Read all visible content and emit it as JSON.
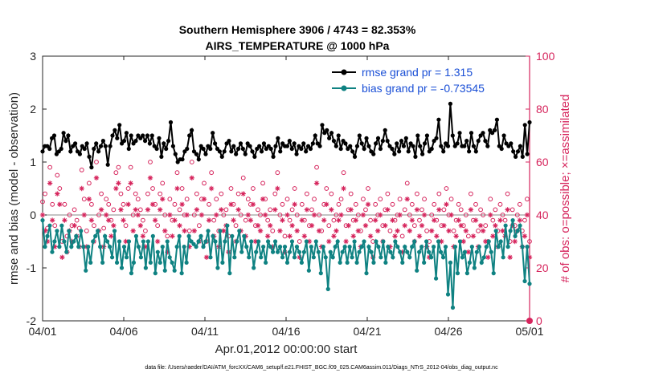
{
  "chart_data": {
    "type": "line",
    "title": "Southern Hemisphere 3906 / 4743 = 82.353%",
    "subtitle": "AIRS_TEMPERATURE @ 1000 hPa",
    "xlabel": "Apr.01,2012 00:00:00 start",
    "ylabel": "rmse and bias (model - observation)",
    "y2label": "# of obs: o=possible; ×=assimilated",
    "xlim": [
      0,
      30
    ],
    "ylim": [
      -2,
      3
    ],
    "y2lim": [
      0,
      100
    ],
    "x_ticks": [
      "04/01",
      "04/06",
      "04/11",
      "04/16",
      "04/21",
      "04/26",
      "05/01"
    ],
    "y_ticks": [
      "-2",
      "-1",
      "0",
      "1",
      "2",
      "3"
    ],
    "y2_ticks": [
      "0",
      "20",
      "40",
      "60",
      "80",
      "100"
    ],
    "footnote": "data file: /Users/raeder/DAI/ATM_forcXX/CAM6_setup/f.e21.FHIST_BGC.f09_025.CAM6assim.011/Diags_NTrS_2012-04/obs_diag_output.nc",
    "legend_position": "top-right",
    "series": [
      {
        "name": "rmse grand pr = 1.315",
        "color": "#000000",
        "marker": "filled-circle",
        "values": [
          1.2,
          1.3,
          1.3,
          1.25,
          1.45,
          1.5,
          1.15,
          1.2,
          1.25,
          1.55,
          1.4,
          1.5,
          1.2,
          1.3,
          1.35,
          1.2,
          1.15,
          1.3,
          1.25,
          1.35,
          1.1,
          0.9,
          1.25,
          1.35,
          1.2,
          1.3,
          1.4,
          1.3,
          0.95,
          1.3,
          1.5,
          1.6,
          1.45,
          1.7,
          1.35,
          1.4,
          1.55,
          1.25,
          1.5,
          1.35,
          1.4,
          1.5,
          1.45,
          1.5,
          1.4,
          1.5,
          1.35,
          1.5,
          1.3,
          1.25,
          1.45,
          1.1,
          1.35,
          1.25,
          1.4,
          1.75,
          1.3,
          1.15,
          1.0,
          1.05,
          1.05,
          1.2,
          1.25,
          1.5,
          1.6,
          1.2,
          1.15,
          1.05,
          1.3,
          1.25,
          1.15,
          1.3,
          1.25,
          1.55,
          1.35,
          1.25,
          1.2,
          1.1,
          1.2,
          1.35,
          1.4,
          1.2,
          1.3,
          1.15,
          1.25,
          1.35,
          1.25,
          1.15,
          1.35,
          1.3,
          1.2,
          1.1,
          1.25,
          1.3,
          1.2,
          1.35,
          1.25,
          1.3,
          1.25,
          1.1,
          1.3,
          1.45,
          1.2,
          1.35,
          1.3,
          1.3,
          1.4,
          1.25,
          1.35,
          1.15,
          1.3,
          1.25,
          1.35,
          1.2,
          1.3,
          1.25,
          1.35,
          1.5,
          1.35,
          1.3,
          1.7,
          1.55,
          1.6,
          1.45,
          1.55,
          1.4,
          1.3,
          1.5,
          1.25,
          1.4,
          1.35,
          1.25,
          1.3,
          1.2,
          1.1,
          1.3,
          1.5,
          1.35,
          1.25,
          1.45,
          1.3,
          1.2,
          1.15,
          1.35,
          1.45,
          1.25,
          1.4,
          1.6,
          1.4,
          1.3,
          1.25,
          1.15,
          1.35,
          1.2,
          1.4,
          1.3,
          1.45,
          1.2,
          1.35,
          1.3,
          1.1,
          1.5,
          1.3,
          1.15,
          1.35,
          1.5,
          1.2,
          1.25,
          1.4,
          1.45,
          1.8,
          1.3,
          1.2,
          1.35,
          1.3,
          2.1,
          1.5,
          1.3,
          1.35,
          1.55,
          1.3,
          1.3,
          1.4,
          1.2,
          1.55,
          1.3,
          1.2,
          1.4,
          1.5,
          1.55,
          1.4,
          1.3,
          1.6,
          1.55,
          1.6,
          1.8,
          1.3,
          1.25,
          1.5,
          1.35,
          1.3,
          1.35,
          1.2,
          1.1,
          1.2,
          1.3,
          1.1,
          1.7,
          1.15,
          1.75
        ]
      },
      {
        "name": "bias grand pr = -0.73545",
        "color": "#0f8282",
        "marker": "filled-circle",
        "values": [
          -0.1,
          -0.6,
          -0.4,
          -0.2,
          -0.7,
          -0.5,
          -0.3,
          -0.6,
          -0.2,
          -0.5,
          -0.7,
          -0.3,
          -0.6,
          -0.5,
          -0.4,
          -0.6,
          -0.3,
          -0.6,
          -1.05,
          -0.6,
          -0.9,
          -0.5,
          -0.4,
          -0.3,
          -0.6,
          -0.9,
          -0.4,
          -0.5,
          -0.6,
          -0.8,
          -0.3,
          -0.9,
          -0.5,
          -1.0,
          -0.6,
          -0.8,
          -0.5,
          -1.1,
          -0.9,
          -0.4,
          -0.6,
          -0.8,
          -0.5,
          -1.0,
          -0.5,
          -0.9,
          -0.4,
          -1.1,
          -0.7,
          -0.9,
          -0.6,
          -1.05,
          -0.5,
          -0.8,
          -0.9,
          -1.05,
          -0.6,
          -0.4,
          -1.1,
          -0.6,
          -0.9,
          -0.4,
          -0.5,
          -0.55,
          -0.6,
          -0.5,
          -0.4,
          -0.6,
          -0.5,
          -0.3,
          -0.8,
          -0.4,
          -0.5,
          -1.0,
          -0.3,
          -0.9,
          -0.5,
          -0.2,
          -1.1,
          -0.4,
          -0.8,
          -0.5,
          -0.3,
          -0.7,
          -0.4,
          -0.6,
          -0.8,
          -0.5,
          -1.0,
          -0.7,
          -0.5,
          -0.8,
          -0.6,
          -0.9,
          -0.5,
          -0.6,
          -0.7,
          -0.5,
          -0.7,
          -0.6,
          -0.8,
          -0.6,
          -0.9,
          -0.7,
          -0.5,
          -0.8,
          -0.6,
          -0.7,
          -0.9,
          -0.7,
          -0.5,
          -1.05,
          -0.6,
          -0.8,
          -0.5,
          -0.7,
          -1.1,
          -0.6,
          -0.8,
          -1.4,
          -0.7,
          -0.8,
          -0.6,
          -0.5,
          -0.9,
          -0.7,
          -0.6,
          -0.9,
          -0.6,
          -0.8,
          -0.5,
          -0.9,
          -0.7,
          -0.6,
          -0.5,
          -1.1,
          -0.6,
          -0.7,
          -0.9,
          -0.5,
          -0.6,
          -0.8,
          -0.5,
          -0.9,
          -0.6,
          -0.7,
          -0.8,
          -0.5,
          -0.6,
          -0.7,
          -0.9,
          -0.6,
          -0.7,
          -0.8,
          -0.6,
          -0.5,
          -1.05,
          -0.7,
          -0.6,
          -0.9,
          -0.5,
          -0.7,
          -0.8,
          -0.6,
          -1.2,
          -0.5,
          -0.7,
          -0.8,
          -0.6,
          -1.5,
          -0.9,
          -1.75,
          -0.6,
          -1.1,
          -0.5,
          -0.8,
          -0.7,
          -1.1,
          -0.9,
          -0.6,
          -1.0,
          -0.7,
          -0.6,
          -0.9,
          -0.8,
          -0.6,
          -0.5,
          -0.7,
          -1.1,
          -0.3,
          -0.6,
          -0.5,
          -0.8,
          -0.2,
          -0.6,
          -0.3,
          -0.1,
          -0.4,
          -0.3,
          -0.2,
          -0.6,
          -1.25,
          -0.6,
          -1.3
        ]
      },
      {
        "name": "# of obs possible",
        "color": "#d6245c",
        "marker": "open-circle",
        "values": [
          45,
          48,
          35,
          58,
          44,
          36,
          55,
          50,
          30,
          44,
          32,
          40,
          36,
          42,
          38,
          35,
          57,
          46,
          34,
          52,
          44,
          36,
          60,
          40,
          48,
          35,
          46,
          44,
          38,
          42,
          56,
          58,
          48,
          44,
          36,
          50,
          58,
          40,
          48,
          46,
          42,
          38,
          34,
          48,
          60,
          50,
          44,
          36,
          48,
          52,
          40,
          32,
          46,
          38,
          44,
          56,
          42,
          50,
          40,
          46,
          34,
          60,
          40,
          48,
          36,
          46,
          52,
          30,
          44,
          56,
          38,
          46,
          34,
          48,
          40,
          42,
          32,
          50,
          44,
          36,
          48,
          40,
          54,
          38,
          46,
          44,
          50,
          36,
          42,
          40,
          52,
          46,
          38,
          42,
          34,
          48,
          56,
          40,
          44,
          32,
          46,
          38,
          42,
          50,
          40,
          30,
          44,
          38,
          48,
          36,
          42,
          46,
          58,
          40,
          34,
          44,
          50,
          36,
          48,
          38,
          40,
          44,
          46,
          56,
          36,
          42,
          48,
          38,
          44,
          40,
          34,
          46,
          42,
          50,
          38,
          30,
          44,
          40,
          46,
          36,
          42,
          48,
          34,
          44,
          38,
          40,
          46,
          32,
          42,
          52,
          40,
          44,
          36,
          48,
          38,
          42,
          46,
          34,
          30,
          40,
          44,
          38,
          48,
          36,
          42,
          50,
          40,
          46,
          34,
          38,
          44,
          42,
          36,
          40,
          32,
          48,
          38,
          44,
          34,
          42,
          40,
          36,
          30,
          46,
          38,
          42,
          34,
          44,
          40,
          38,
          48,
          30,
          42,
          36,
          40,
          44,
          34,
          38,
          46,
          30
        ]
      },
      {
        "name": "# of obs assimilated",
        "color": "#d6245c",
        "marker": "star",
        "values": [
          40,
          34,
          30,
          52,
          38,
          28,
          48,
          44,
          24,
          38,
          26,
          34,
          30,
          36,
          32,
          28,
          50,
          40,
          28,
          46,
          38,
          30,
          54,
          34,
          42,
          28,
          40,
          38,
          32,
          36,
          50,
          52,
          42,
          38,
          30,
          44,
          52,
          34,
          42,
          40,
          36,
          32,
          28,
          42,
          54,
          44,
          38,
          30,
          42,
          46,
          34,
          26,
          40,
          32,
          38,
          50,
          36,
          44,
          34,
          40,
          28,
          54,
          34,
          42,
          30,
          40,
          46,
          24,
          38,
          50,
          32,
          40,
          28,
          42,
          34,
          36,
          26,
          44,
          38,
          30,
          42,
          34,
          48,
          32,
          40,
          38,
          44,
          30,
          36,
          34,
          46,
          40,
          32,
          36,
          28,
          42,
          50,
          34,
          38,
          26,
          40,
          32,
          36,
          44,
          34,
          24,
          38,
          32,
          42,
          30,
          36,
          40,
          52,
          34,
          28,
          38,
          44,
          30,
          42,
          32,
          34,
          38,
          40,
          50,
          30,
          36,
          42,
          32,
          38,
          34,
          28,
          40,
          36,
          44,
          32,
          24,
          38,
          34,
          40,
          30,
          36,
          42,
          28,
          38,
          32,
          34,
          40,
          26,
          36,
          46,
          34,
          38,
          30,
          42,
          32,
          36,
          40,
          28,
          24,
          34,
          38,
          32,
          42,
          30,
          36,
          44,
          34,
          40,
          28,
          32,
          38,
          36,
          30,
          34,
          26,
          42,
          32,
          38,
          28,
          36,
          34,
          30,
          24,
          40,
          32,
          36,
          28,
          38,
          34,
          32,
          42,
          24,
          36,
          30,
          34,
          38,
          28,
          32,
          40,
          24
        ]
      }
    ]
  }
}
